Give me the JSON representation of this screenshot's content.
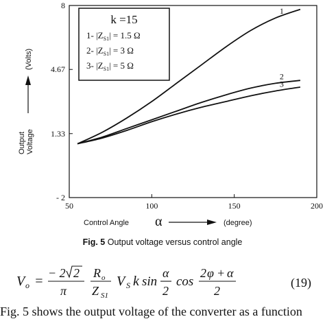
{
  "chart_data": {
    "type": "line",
    "x_range": [
      50,
      200
    ],
    "y_range": [
      -2,
      8
    ],
    "x_ticks": [
      "50",
      "100",
      "150",
      "200"
    ],
    "y_ticks": [
      "8",
      "4.67",
      "1.33",
      "- 2"
    ],
    "xlabel_text": "Control Angle",
    "xlabel_symbol": "α",
    "xlabel_unit": "(degree)",
    "ylabel_lines": [
      "Output",
      "Voltage"
    ],
    "ylabel_unit": "(Volts)",
    "legend": {
      "title": "k =15",
      "entries": [
        {
          "id": "1",
          "label": "1- |Z",
          "sub": "S1",
          "value": "| = 1.5 Ω"
        },
        {
          "id": "2",
          "label": "2- |Z",
          "sub": "S1",
          "value": "| = 3    Ω"
        },
        {
          "id": "3",
          "label": "3- |Z",
          "sub": "S1",
          "value": "| = 5    Ω"
        }
      ]
    },
    "series": [
      {
        "id": "1",
        "x": [
          55,
          70,
          85,
          100,
          115,
          130,
          145,
          160,
          175,
          190
        ],
        "y": [
          0.8,
          1.4,
          2.15,
          3.0,
          3.95,
          4.9,
          5.85,
          6.7,
          7.35,
          7.8
        ]
      },
      {
        "id": "2",
        "x": [
          55,
          70,
          85,
          100,
          115,
          130,
          145,
          160,
          175,
          190
        ],
        "y": [
          0.8,
          1.15,
          1.6,
          2.05,
          2.5,
          2.95,
          3.35,
          3.7,
          3.95,
          4.1
        ]
      },
      {
        "id": "3",
        "x": [
          55,
          70,
          85,
          100,
          115,
          130,
          145,
          160,
          175,
          190
        ],
        "y": [
          0.8,
          1.1,
          1.5,
          1.95,
          2.35,
          2.7,
          3.0,
          3.3,
          3.55,
          3.75
        ]
      }
    ]
  },
  "caption": {
    "prefix": "Fig. 5",
    "text": " Output voltage versus control angle"
  },
  "equation": {
    "number": "(19)"
  },
  "body_text": "Fig. 5 shows the output voltage of the converter as a function"
}
